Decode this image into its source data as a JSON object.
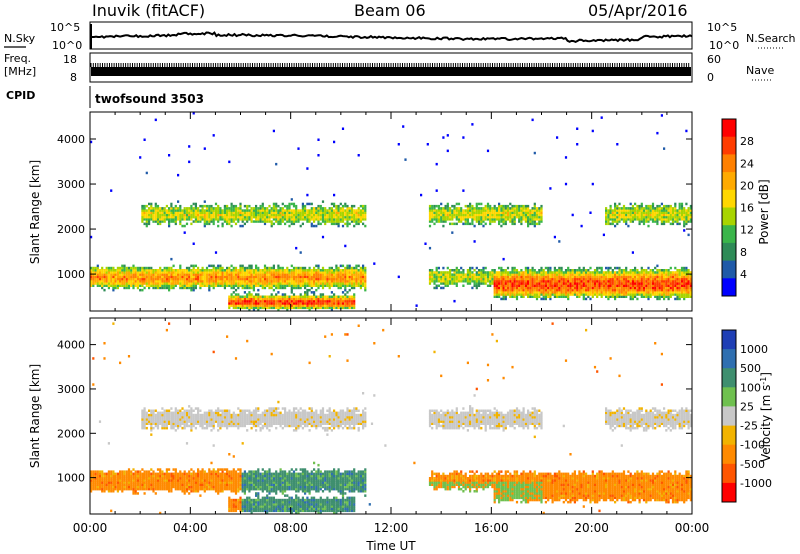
{
  "header": {
    "station": "Inuvik (fitACF)",
    "beam": "Beam 06",
    "date": "05/Apr/2016"
  },
  "noise_panel": {
    "left_label": "N.Sky",
    "right_label": "N.Search",
    "left_ticks": [
      "10^5",
      "10^0"
    ],
    "right_ticks": [
      "10^5",
      "10^0"
    ]
  },
  "freq_panel": {
    "left_label_1": "Freq.",
    "left_label_2": "[MHz]",
    "left_ticks": [
      "18",
      "8"
    ],
    "right_ticks": [
      "60",
      "0"
    ],
    "right_label": "Nave"
  },
  "cpid": {
    "label": "CPID",
    "program": "twofsound 3503"
  },
  "chart_data": [
    {
      "type": "heatmap",
      "name": "power",
      "ylabel": "Slant Range [km]",
      "yticks": [
        1000,
        2000,
        3000,
        4000
      ],
      "ylim": [
        180,
        4600
      ],
      "xticks": [
        "00:00",
        "04:00",
        "08:00",
        "12:00",
        "16:00",
        "20:00",
        "00:00"
      ],
      "xlim_hours": [
        0,
        24
      ],
      "colorbar": {
        "label": "Power [dB]",
        "ticks": [
          "28",
          "24",
          "20",
          "16",
          "12",
          "8",
          "4"
        ],
        "colors": [
          "#ff0000",
          "#ff3c00",
          "#ff8000",
          "#ffaa00",
          "#ffd700",
          "#a8d400",
          "#3ab54a",
          "#2e8b57",
          "#1f5aa8",
          "#0000ff"
        ]
      }
    },
    {
      "type": "heatmap",
      "name": "velocity",
      "ylabel": "Slant Range [km]",
      "yticks": [
        1000,
        2000,
        3000,
        4000
      ],
      "ylim": [
        180,
        4600
      ],
      "xticks": [
        "00:00",
        "04:00",
        "08:00",
        "12:00",
        "16:00",
        "20:00",
        "00:00"
      ],
      "xlabel": "Time UT",
      "xlim_hours": [
        0,
        24
      ],
      "colorbar": {
        "label": "Velocity [m s",
        "label_sup": "-1",
        "label_end": "]",
        "ticks": [
          "1000",
          "500",
          "100",
          "25",
          "-25",
          "-100",
          "-500",
          "-1000"
        ],
        "colors": [
          "#1f3fb5",
          "#2f6fb0",
          "#3f8f6f",
          "#6fc04f",
          "#c8c8c8",
          "#f2b300",
          "#ff8a00",
          "#ff5500",
          "#ff0000"
        ]
      }
    }
  ]
}
